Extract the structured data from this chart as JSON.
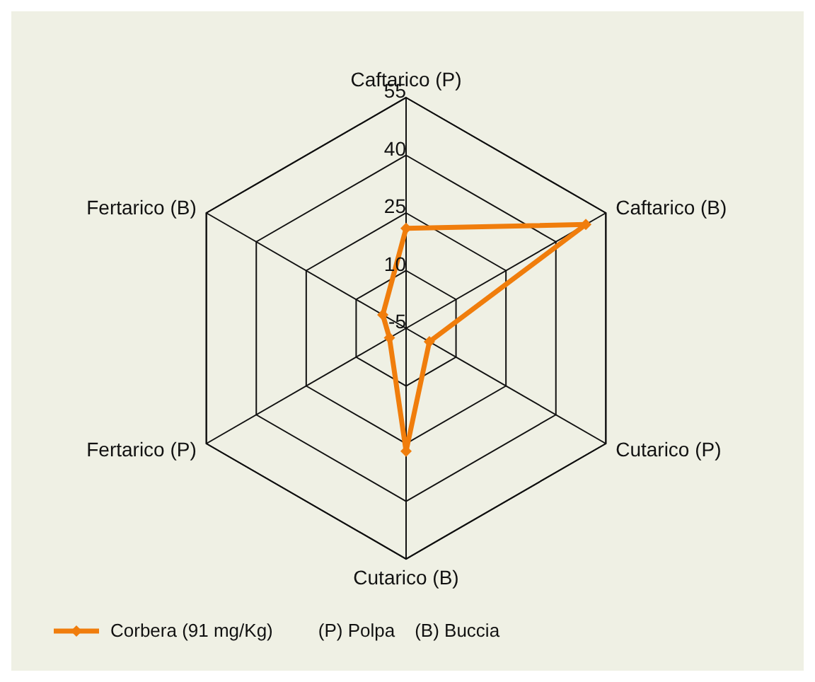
{
  "chart_data": {
    "type": "radar",
    "categories": [
      "Caftarico (P)",
      "Caftarico (B)",
      "Cutarico (P)",
      "Cutarico (B)",
      "Fertarico (P)",
      "Fertarico (B)"
    ],
    "series": [
      {
        "name": "Corbera (91 mg/Kg)",
        "color": "#f07d0c",
        "values": [
          21,
          49,
          2,
          27,
          0,
          2
        ]
      }
    ],
    "ylim": [
      -5,
      55
    ],
    "yticks": [
      -5,
      10,
      25,
      40,
      55
    ],
    "grid": true,
    "legend": "bottom",
    "marker": "diamond",
    "line_style": "solid",
    "annotations": [
      "(P) Polpa",
      "(B) Buccia"
    ]
  }
}
